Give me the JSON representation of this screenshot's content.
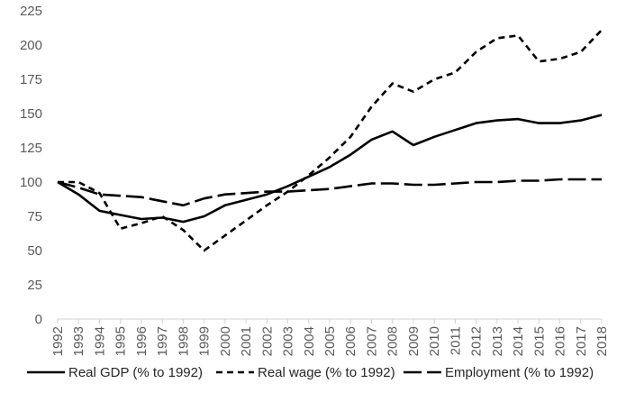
{
  "chart_data": {
    "type": "line",
    "title": "",
    "xlabel": "",
    "ylabel": "",
    "ylim": [
      0,
      225
    ],
    "yticks": [
      0,
      25,
      50,
      75,
      100,
      125,
      150,
      175,
      200,
      225
    ],
    "grid": false,
    "legend_position": "bottom",
    "x": [
      "1992",
      "1993",
      "1994",
      "1995",
      "1996",
      "1997",
      "1998",
      "1999",
      "2000",
      "2001",
      "2002",
      "2003",
      "2004",
      "2005",
      "2006",
      "2007",
      "2008",
      "2009",
      "2010",
      "2011",
      "2012",
      "2013",
      "2014",
      "2015",
      "2016",
      "2017",
      "2018"
    ],
    "series": [
      {
        "name": "Real GDP (% to 1992)",
        "style": "solid",
        "color": "#000000",
        "values": [
          100,
          91,
          79,
          76,
          73,
          74,
          71,
          75,
          83,
          87,
          91,
          97,
          104,
          111,
          120,
          131,
          137,
          127,
          133,
          138,
          143,
          145,
          146,
          143,
          143,
          145,
          149
        ]
      },
      {
        "name": "Real wage (% to 1992)",
        "style": "dashed",
        "color": "#000000",
        "values": [
          100,
          100,
          92,
          66,
          70,
          75,
          65,
          50,
          61,
          72,
          83,
          93,
          105,
          118,
          133,
          155,
          172,
          166,
          175,
          180,
          195,
          205,
          207,
          188,
          190,
          195,
          211
        ]
      },
      {
        "name": "Employment (% to 1992)",
        "style": "long-dash",
        "color": "#000000",
        "values": [
          100,
          96,
          91,
          90,
          89,
          86,
          83,
          88,
          91,
          92,
          93,
          93,
          94,
          95,
          97,
          99,
          99,
          98,
          98,
          99,
          100,
          100,
          101,
          101,
          102,
          102,
          102
        ]
      }
    ]
  }
}
